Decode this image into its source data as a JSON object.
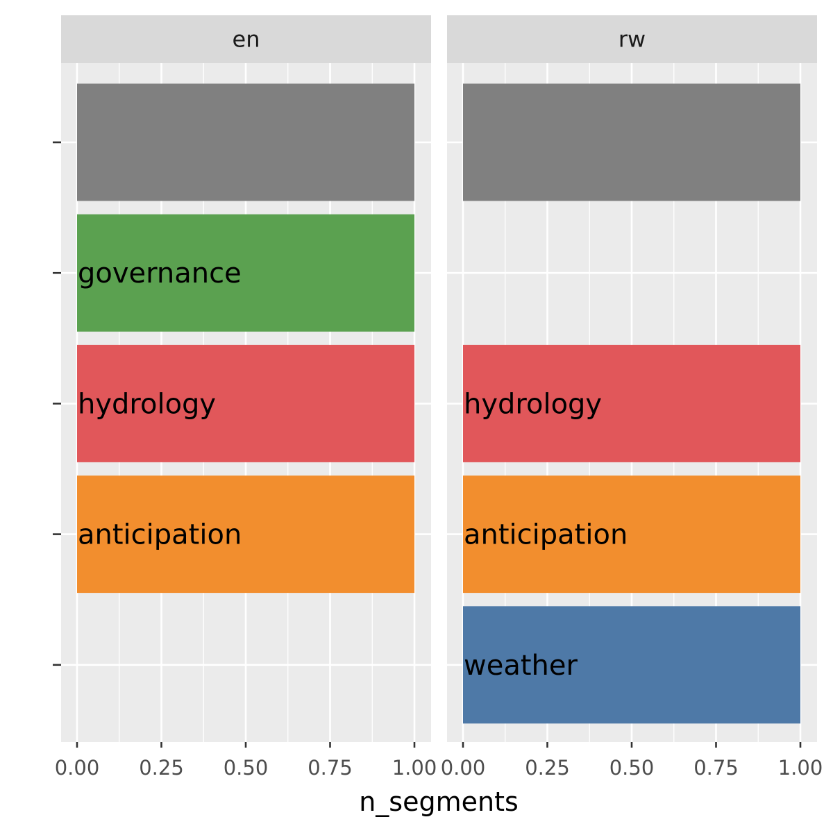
{
  "chart_data": {
    "type": "bar",
    "orientation": "horizontal",
    "xlabel": "n_segments",
    "ylabel": "",
    "xlim": [
      0,
      1
    ],
    "x_ticks": [
      "0.00",
      "0.25",
      "0.50",
      "0.75",
      "1.00"
    ],
    "grid": true,
    "legend": "none",
    "y_rows": 5,
    "facets": [
      {
        "name": "en",
        "bars": [
          {
            "row": 1,
            "label": "",
            "value": 1,
            "color": "#808080"
          },
          {
            "row": 2,
            "label": "governance",
            "value": 1,
            "color": "#5BA150"
          },
          {
            "row": 3,
            "label": "hydrology",
            "value": 1,
            "color": "#E1575A"
          },
          {
            "row": 4,
            "label": "anticipation",
            "value": 1,
            "color": "#F28E2E"
          }
        ]
      },
      {
        "name": "rw",
        "bars": [
          {
            "row": 1,
            "label": "",
            "value": 1,
            "color": "#808080"
          },
          {
            "row": 3,
            "label": "hydrology",
            "value": 1,
            "color": "#E1575A"
          },
          {
            "row": 4,
            "label": "anticipation",
            "value": 1,
            "color": "#F28E2E"
          },
          {
            "row": 5,
            "label": "weather",
            "value": 1,
            "color": "#4E79A7"
          }
        ]
      }
    ]
  }
}
